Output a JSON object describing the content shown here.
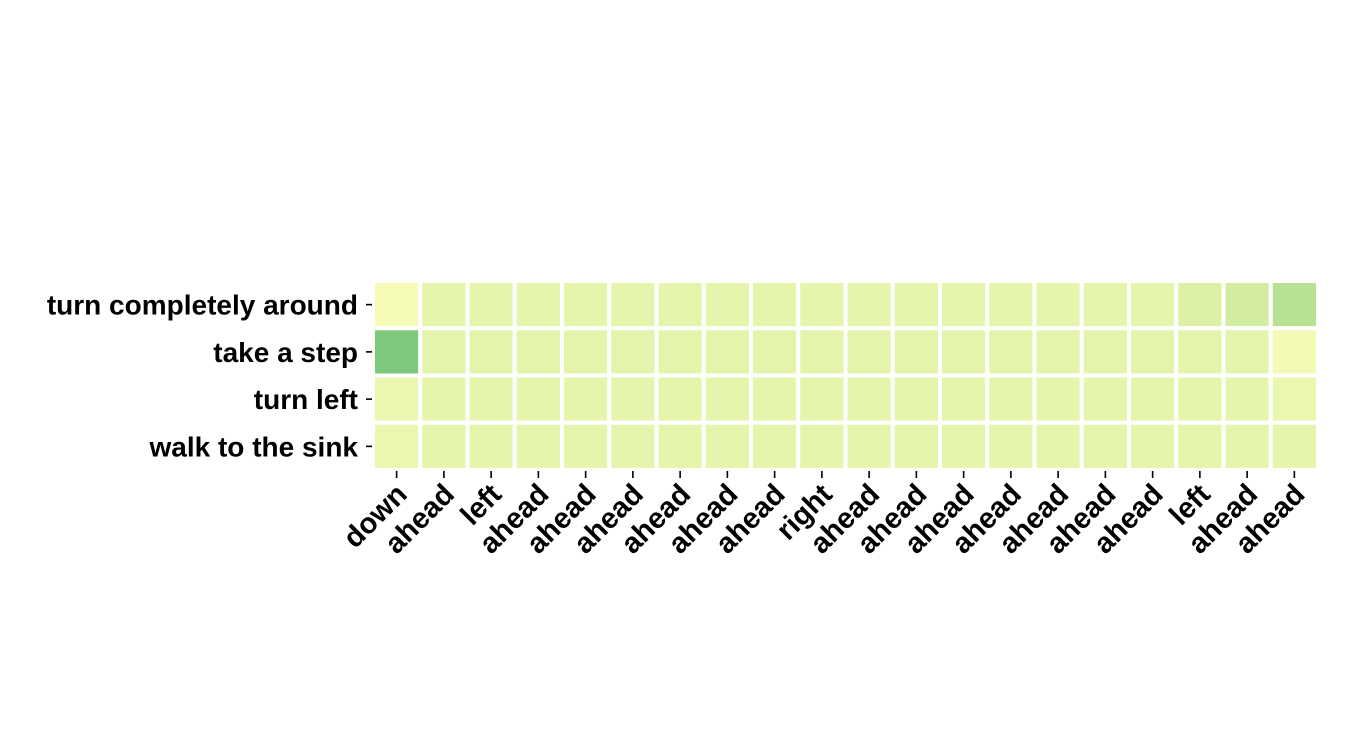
{
  "chart_data": {
    "type": "heatmap",
    "title": "",
    "xlabel": "",
    "ylabel": "",
    "x_tick_labels": [
      "down",
      "ahead",
      "left",
      "ahead",
      "ahead",
      "ahead",
      "ahead",
      "ahead",
      "ahead",
      "right",
      "ahead",
      "ahead",
      "ahead",
      "ahead",
      "ahead",
      "ahead",
      "ahead",
      "left",
      "ahead",
      "ahead"
    ],
    "y_tick_labels": [
      "turn completely around",
      "take a step",
      "turn left",
      "walk to the sink"
    ],
    "values": [
      [
        0.05,
        0.16,
        0.16,
        0.16,
        0.16,
        0.16,
        0.16,
        0.16,
        0.16,
        0.16,
        0.16,
        0.16,
        0.16,
        0.16,
        0.16,
        0.16,
        0.16,
        0.22,
        0.27,
        0.4
      ],
      [
        0.62,
        0.17,
        0.17,
        0.17,
        0.17,
        0.17,
        0.17,
        0.17,
        0.17,
        0.17,
        0.17,
        0.17,
        0.17,
        0.17,
        0.17,
        0.17,
        0.17,
        0.17,
        0.17,
        0.07
      ],
      [
        0.12,
        0.16,
        0.16,
        0.16,
        0.16,
        0.16,
        0.16,
        0.16,
        0.16,
        0.16,
        0.16,
        0.16,
        0.16,
        0.16,
        0.16,
        0.16,
        0.16,
        0.16,
        0.16,
        0.13
      ],
      [
        0.12,
        0.16,
        0.16,
        0.16,
        0.16,
        0.16,
        0.16,
        0.16,
        0.16,
        0.16,
        0.16,
        0.16,
        0.16,
        0.16,
        0.16,
        0.16,
        0.16,
        0.16,
        0.16,
        0.16
      ]
    ],
    "colormap": "YlGn",
    "color_min": "#f4fbba",
    "color_max": "#8fd17f",
    "colorbar": false,
    "grid": false,
    "legend": "none"
  }
}
